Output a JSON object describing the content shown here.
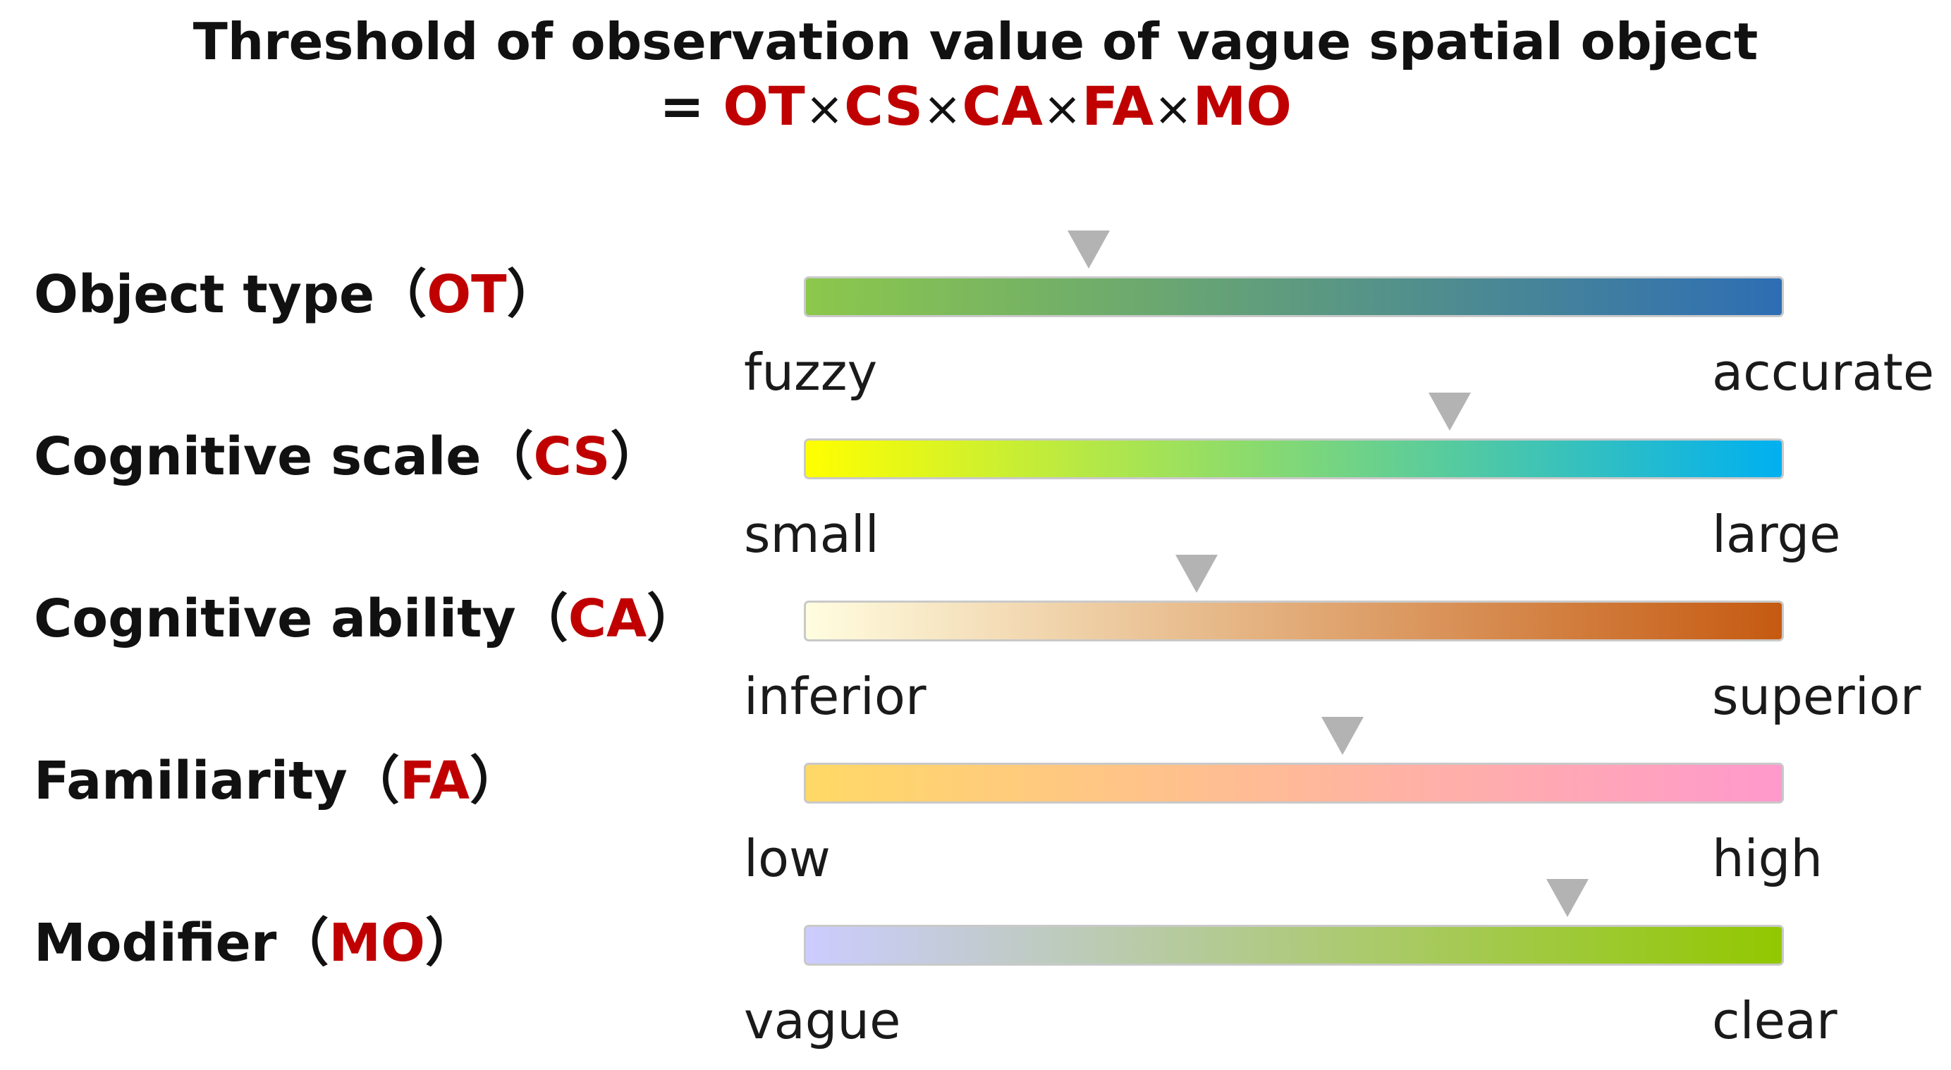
{
  "title": "Threshold of observation value of vague spatial object",
  "formula": {
    "prefix": "= ",
    "op": "×",
    "factors": [
      "OT",
      "CS",
      "CA",
      "FA",
      "MO"
    ]
  },
  "factors": [
    {
      "name": "Object type",
      "abbr": "OT",
      "low_label": "fuzzy",
      "high_label": "accurate",
      "gradient": [
        "#8cc84b",
        "#2e6db4"
      ],
      "marker_level": 0.29
    },
    {
      "name": "Cognitive scale",
      "abbr": "CS",
      "low_label": "small",
      "high_label": "large",
      "gradient": [
        "#ffff00",
        "#00b0f0"
      ],
      "marker_level": 0.66
    },
    {
      "name": "Cognitive ability",
      "abbr": "CA",
      "low_label": "inferior",
      "high_label": "superior",
      "gradient": [
        "#fffde0",
        "#c55a11"
      ],
      "marker_level": 0.4
    },
    {
      "name": "Familiarity",
      "abbr": "FA",
      "low_label": "low",
      "high_label": "high",
      "gradient": [
        "#ffd966",
        "#ff99cc"
      ],
      "marker_level": 0.55
    },
    {
      "name": "Modifier",
      "abbr": "MO",
      "low_label": "vague",
      "high_label": "clear",
      "gradient": [
        "#ccccff",
        "#92c800"
      ],
      "marker_level": 0.78
    }
  ]
}
